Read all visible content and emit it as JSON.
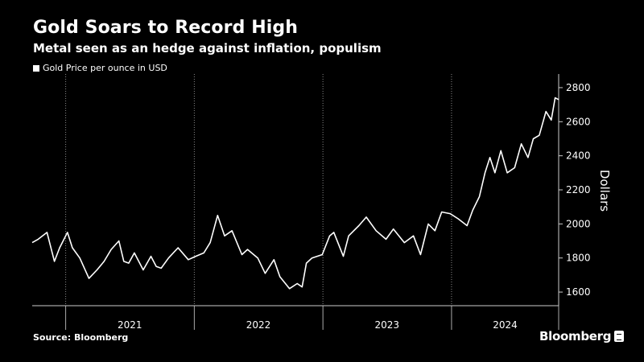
{
  "header": {
    "title": "Gold Soars to Record High",
    "subtitle": "Metal seen as an hedge against inflation, populism"
  },
  "footer": {
    "source": "Source: Bloomberg",
    "brand": "Bloomberg"
  },
  "colors": {
    "background": "#000000",
    "line": "#ffffff",
    "grid": "#888888"
  },
  "chart_data": {
    "type": "line",
    "title": "Gold Soars to Record High",
    "subtitle": "Metal seen as an hedge against inflation, populism",
    "legend": [
      "Gold Price per ounce in USD"
    ],
    "legend_position": "top-left",
    "ylabel": "Dollars",
    "y_axis_side": "right",
    "ylim": [
      1520,
      2880
    ],
    "xlim": [
      "2020-09-28",
      "2024-10-31"
    ],
    "yticks": [
      1600,
      1800,
      2000,
      2200,
      2400,
      2600,
      2800
    ],
    "xtick_labels": [
      "2021",
      "2022",
      "2023",
      "2024"
    ],
    "grid": "vertical dotted at year boundaries",
    "series": [
      {
        "name": "Gold Price per ounce in USD",
        "x": [
          "2020-09-28",
          "2020-10-15",
          "2020-11-09",
          "2020-11-30",
          "2020-12-15",
          "2021-01-06",
          "2021-01-20",
          "2021-02-10",
          "2021-03-08",
          "2021-03-31",
          "2021-04-20",
          "2021-05-10",
          "2021-06-01",
          "2021-06-15",
          "2021-06-29",
          "2021-07-15",
          "2021-08-09",
          "2021-08-31",
          "2021-09-15",
          "2021-09-29",
          "2021-10-20",
          "2021-11-16",
          "2021-12-15",
          "2022-01-05",
          "2022-01-28",
          "2022-02-15",
          "2022-03-08",
          "2022-03-28",
          "2022-04-18",
          "2022-05-16",
          "2022-06-01",
          "2022-06-30",
          "2022-07-21",
          "2022-08-15",
          "2022-09-01",
          "2022-09-28",
          "2022-10-20",
          "2022-11-03",
          "2022-11-15",
          "2022-12-01",
          "2022-12-30",
          "2023-01-20",
          "2023-02-01",
          "2023-02-28",
          "2023-03-15",
          "2023-04-13",
          "2023-05-04",
          "2023-06-01",
          "2023-06-29",
          "2023-07-20",
          "2023-08-20",
          "2023-09-15",
          "2023-10-05",
          "2023-10-27",
          "2023-11-15",
          "2023-12-04",
          "2023-12-28",
          "2024-01-20",
          "2024-02-14",
          "2024-03-01",
          "2024-03-20",
          "2024-04-05",
          "2024-04-19",
          "2024-05-03",
          "2024-05-20",
          "2024-06-07",
          "2024-06-28",
          "2024-07-17",
          "2024-08-05",
          "2024-08-20",
          "2024-09-06",
          "2024-09-25",
          "2024-10-10",
          "2024-10-21",
          "2024-10-31"
        ],
        "values": [
          1890,
          1910,
          1950,
          1780,
          1860,
          1950,
          1860,
          1800,
          1680,
          1730,
          1780,
          1850,
          1900,
          1780,
          1770,
          1830,
          1730,
          1810,
          1750,
          1740,
          1800,
          1860,
          1790,
          1810,
          1830,
          1890,
          2050,
          1930,
          1960,
          1820,
          1850,
          1800,
          1710,
          1790,
          1690,
          1620,
          1650,
          1630,
          1770,
          1800,
          1820,
          1930,
          1950,
          1810,
          1930,
          1990,
          2040,
          1960,
          1910,
          1970,
          1890,
          1930,
          1820,
          2000,
          1960,
          2070,
          2060,
          2030,
          1990,
          2080,
          2160,
          2300,
          2390,
          2300,
          2430,
          2300,
          2330,
          2470,
          2390,
          2500,
          2520,
          2660,
          2610,
          2740,
          2730
        ]
      }
    ]
  }
}
